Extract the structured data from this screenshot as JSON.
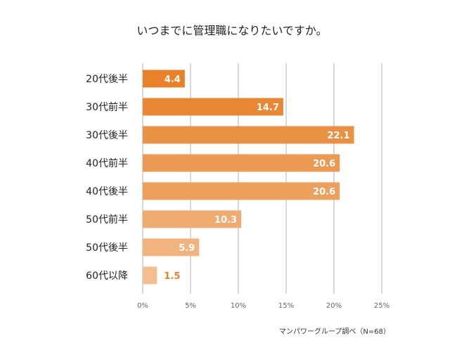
{
  "chart_data": {
    "type": "bar",
    "orientation": "horizontal",
    "title": "いつまでに管理職になりたいですか。",
    "categories": [
      "20代後半",
      "30代前半",
      "30代後半",
      "40代前半",
      "40代後半",
      "50代前半",
      "50代後半",
      "60代以降"
    ],
    "values": [
      4.4,
      14.7,
      22.1,
      20.6,
      20.6,
      10.3,
      5.9,
      1.5
    ],
    "value_labels": [
      "4.4",
      "14.7",
      "22.1",
      "20.6",
      "20.6",
      "10.3",
      "5.9",
      "1.5"
    ],
    "colors": [
      "#E8812A",
      "#E98732",
      "#EB9145",
      "#EC9A53",
      "#EDA05C",
      "#F0AB71",
      "#F2B47F",
      "#F4BE91"
    ],
    "outside_label_color": "#E8812A",
    "xlim": [
      0,
      25
    ],
    "xticks": [
      0,
      5,
      10,
      15,
      20,
      25
    ],
    "xtick_labels": [
      "0%",
      "5%",
      "10%",
      "15%",
      "20%",
      "25%"
    ],
    "grid": true,
    "source_note": "マンパワーグループ調べ（N=68）"
  }
}
